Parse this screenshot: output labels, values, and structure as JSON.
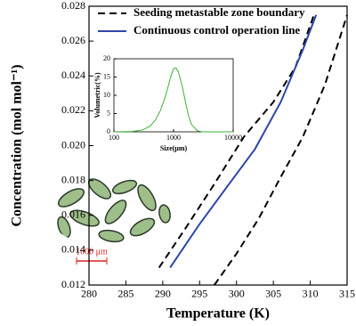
{
  "chart_data": [
    {
      "type": "line",
      "xlabel": "Temperature (K)",
      "ylabel": "Concentration (mol mol⁻¹)",
      "xlim": [
        280,
        315
      ],
      "xticks": [
        280,
        285,
        290,
        295,
        300,
        305,
        310,
        315
      ],
      "ylim": [
        0.012,
        0.028
      ],
      "yticks": [
        0.012,
        0.014,
        0.016,
        0.018,
        {
          "value": 0.02,
          "label": "0.020"
        },
        0.022,
        0.024,
        0.026,
        0.028
      ],
      "legend": "upper left",
      "annotations": [
        "1000 μm"
      ],
      "series": [
        {
          "name": "Seeding metastable zone boundary",
          "color": "#000000",
          "linestyle": "dashed",
          "x": [
            289.5,
            293,
            297,
            301,
            305,
            308,
            310.5,
            null,
            297,
            300,
            303,
            306,
            309,
            312,
            315
          ],
          "values": [
            0.013,
            0.0152,
            0.0178,
            0.0205,
            0.0225,
            0.0245,
            0.0275,
            null,
            0.012,
            0.0138,
            0.0158,
            0.0182,
            0.0205,
            0.0235,
            0.0275
          ]
        },
        {
          "name": "Continuous control operation line",
          "color": "#2f46a8",
          "linestyle": "solid",
          "x": [
            291,
            295,
            299,
            302.5,
            306,
            309,
            310.8
          ],
          "values": [
            0.013,
            0.0155,
            0.0178,
            0.0198,
            0.0225,
            0.0255,
            0.0275
          ]
        }
      ]
    },
    {
      "type": "line",
      "xlabel": "Size(μm)",
      "ylabel": "Volumetric(%)",
      "xlog": true,
      "xlim": [
        100,
        10000
      ],
      "xticks": [
        100,
        1000,
        10000
      ],
      "ylim": [
        0,
        20
      ],
      "yticks": [
        0,
        5,
        10,
        15,
        20
      ],
      "series": [
        {
          "color": "#3cb034",
          "linestyle": "solid",
          "x": [
            100,
            200,
            300,
            400,
            500,
            600,
            700,
            800,
            900,
            1000,
            1100,
            1200,
            1400,
            1600,
            1800,
            2000,
            2500,
            3000,
            10000
          ],
          "values": [
            0,
            0.1,
            0.5,
            1.5,
            3.3,
            5.8,
            8.8,
            12,
            15.2,
            17.3,
            17.5,
            16.5,
            12.5,
            7.8,
            4.2,
            2,
            0.3,
            0,
            0
          ]
        }
      ]
    }
  ]
}
